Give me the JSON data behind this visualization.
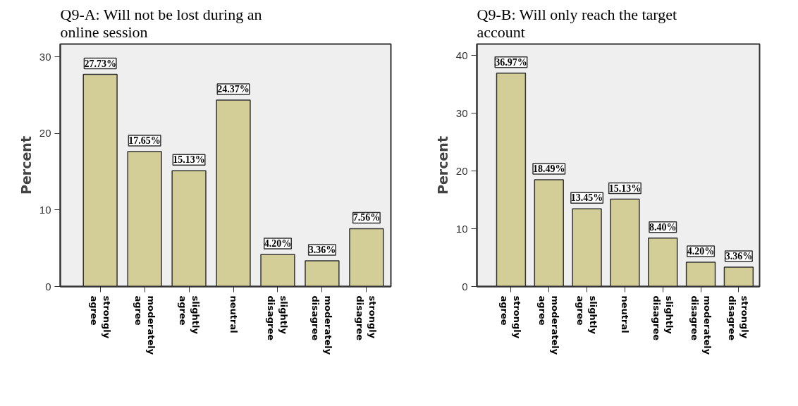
{
  "chart_data": [
    {
      "type": "bar",
      "title": "Q9-A: Will not be lost during an online session",
      "ylabel": "Percent",
      "categories": [
        "strongly agree",
        "moderately agree",
        "slightly agree",
        "neutral",
        "slightly disagree",
        "moderately disagree",
        "strongly disagree"
      ],
      "values": [
        27.73,
        17.65,
        15.13,
        24.37,
        4.2,
        3.36,
        7.56
      ],
      "color": "#d3ce97",
      "value_labels": [
        "27.73%",
        "17.65%",
        "15.13%",
        "24.37%",
        "4.20%",
        "3.36%",
        "7.56%"
      ],
      "ylim": [
        0,
        31.7
      ],
      "yticks": [
        0,
        10,
        20,
        30
      ],
      "grid": false
    },
    {
      "type": "bar",
      "title": "Q9-B: Will only reach the target account",
      "ylabel": "Percent",
      "categories": [
        "strongly agree",
        "moderately agree",
        "slightly agree",
        "neutral",
        "slightly disagree",
        "moderately disagree",
        "strongly disagree"
      ],
      "values": [
        36.97,
        18.49,
        13.45,
        15.13,
        8.4,
        4.2,
        3.36
      ],
      "color": "#d3ce97",
      "value_labels": [
        "36.97%",
        "18.49%",
        "13.45%",
        "15.13%",
        "8.40%",
        "4.20%",
        "3.36%"
      ],
      "ylim": [
        0,
        42
      ],
      "yticks": [
        0,
        10,
        20,
        30,
        40
      ],
      "grid": false
    }
  ]
}
